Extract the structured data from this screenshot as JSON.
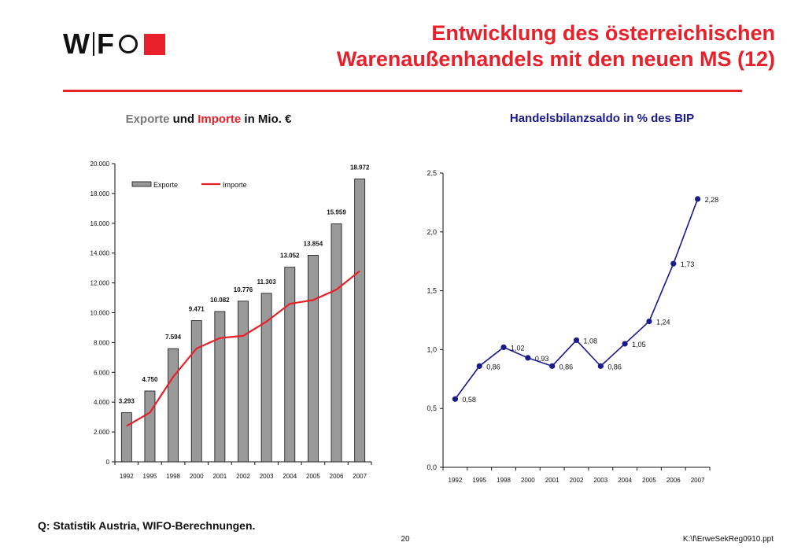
{
  "logo": {
    "letters_left": "W",
    "letters_right": "F"
  },
  "title": {
    "line1": "Entwicklung des österreichischen",
    "line2": "Warenaußenhandels mit den neuen MS (12)"
  },
  "left_heading": {
    "part1": "Exporte",
    "part2": " und ",
    "part3": "Importe",
    "part4": " in Mio. €"
  },
  "right_heading": "Handelsbilanzsaldo in % des BIP",
  "source": "Q: Statistik Austria, WIFO-Berechnungen.",
  "page_number": "20",
  "file_path": "K:\\f\\ErweSekReg0910.ppt",
  "colors": {
    "accent_red": "#e8202a",
    "bar_grey": "#999999",
    "navy": "#1a1a8c"
  },
  "chart_data": [
    {
      "type": "bar",
      "categories": [
        "1992",
        "1995",
        "1998",
        "2000",
        "2001",
        "2002",
        "2003",
        "2004",
        "2005",
        "2006",
        "2007"
      ],
      "ylim": [
        0,
        20000
      ],
      "yticks": [
        0,
        2000,
        4000,
        6000,
        8000,
        10000,
        12000,
        14000,
        16000,
        18000,
        20000
      ],
      "ytick_labels": [
        "0",
        "2.000",
        "4.000",
        "6.000",
        "8.000",
        "10.000",
        "12.000",
        "14.000",
        "16.000",
        "18.000",
        "20.000"
      ],
      "legend_placement": "top-left",
      "series": [
        {
          "name": "Exporte",
          "kind": "bar",
          "color": "#999999",
          "values": [
            3293,
            4750,
            7594,
            9471,
            10082,
            10776,
            11303,
            13052,
            13854,
            15959,
            18972
          ],
          "labels": [
            "3.293",
            "4.750",
            "7.594",
            "9.471",
            "10.082",
            "10.776",
            "11.303",
            "13.052",
            "13.854",
            "15.959",
            "18.972"
          ]
        },
        {
          "name": "Importe",
          "kind": "line",
          "color": "#e8202a",
          "values": [
            2400,
            3300,
            5700,
            7600,
            8300,
            8450,
            9400,
            10600,
            10850,
            11550,
            12800
          ]
        }
      ]
    },
    {
      "type": "line",
      "categories": [
        "1992",
        "1995",
        "1998",
        "2000",
        "2001",
        "2002",
        "2003",
        "2004",
        "2005",
        "2006",
        "2007"
      ],
      "ylim": [
        0,
        2.5
      ],
      "yticks": [
        0,
        0.5,
        1.0,
        1.5,
        2.0,
        2.5
      ],
      "ytick_labels": [
        "0,0",
        "0,5",
        "1,0",
        "1,5",
        "2,0",
        "2,5"
      ],
      "series": [
        {
          "color": "#1a1a8c",
          "values": [
            0.58,
            0.86,
            1.02,
            0.93,
            0.86,
            1.08,
            0.86,
            1.05,
            1.24,
            1.73,
            2.28
          ],
          "labels": [
            "0,58",
            "0,86",
            "1,02",
            "0,93",
            "0,86",
            "1,08",
            "0,86",
            "1,05",
            "1,24",
            "1,73",
            "2,28"
          ]
        }
      ]
    }
  ]
}
